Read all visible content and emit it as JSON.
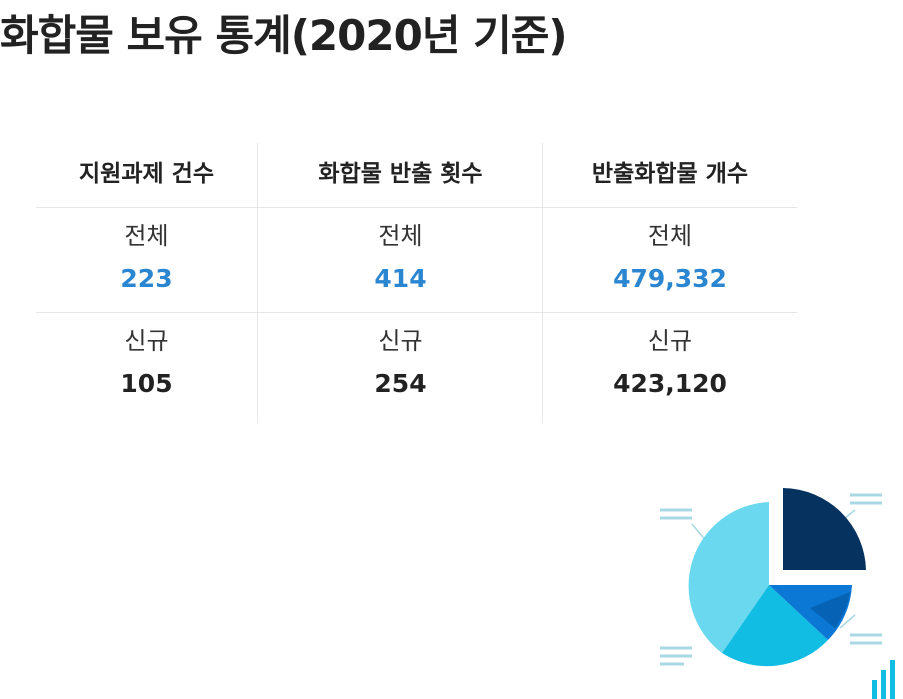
{
  "title": "화합물 보유 통계(2020년 기준)",
  "columns": [
    {
      "header": "지원과제 건수",
      "total_label": "전체",
      "total_value": "223",
      "new_label": "신규",
      "new_value": "105"
    },
    {
      "header": "화합물 반출 횟수",
      "total_label": "전체",
      "total_value": "414",
      "new_label": "신규",
      "new_value": "254"
    },
    {
      "header": "반출화합물 개수",
      "total_label": "전체",
      "total_value": "479,332",
      "new_label": "신규",
      "new_value": "423,120"
    }
  ],
  "colors": {
    "accent_value": "#2b86d1",
    "text": "#222222",
    "divider": "#e6e6e6",
    "pie_navy": "#06325f",
    "pie_blue": "#0a78d4",
    "pie_cyan": "#11bde2",
    "pie_light": "#6ad8ef",
    "decor_lines": "#a8d8e4"
  },
  "illustration": {
    "icon": "pie-chart-icon",
    "bar_icon": "bar-chart-icon"
  }
}
